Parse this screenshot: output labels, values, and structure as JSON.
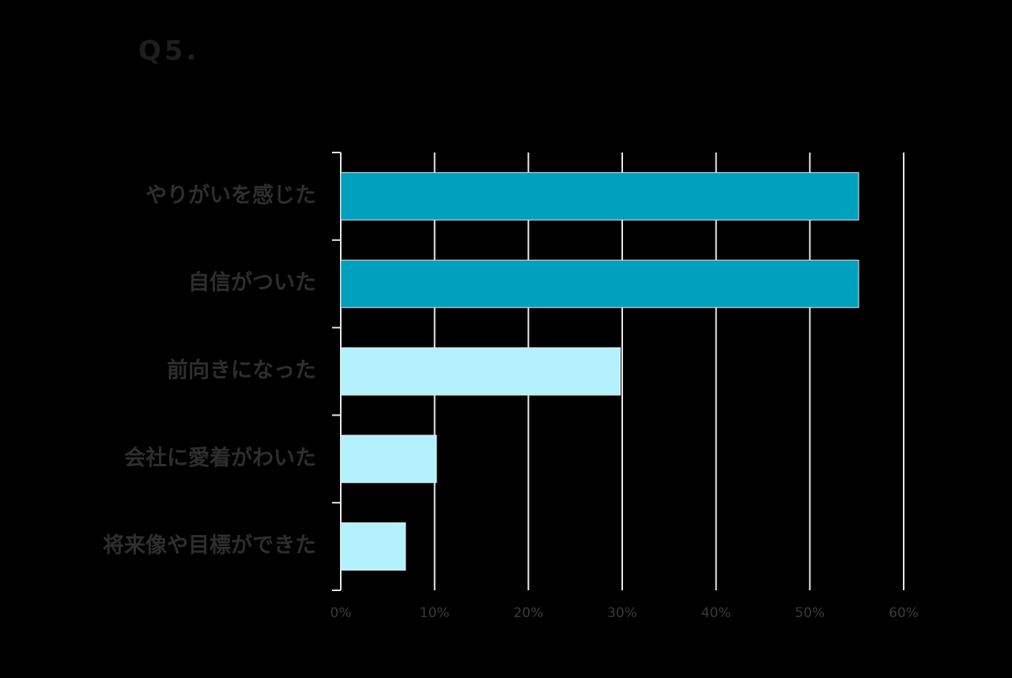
{
  "chart_data": {
    "type": "bar",
    "orientation": "horizontal",
    "title": "Q5.",
    "categories": [
      "やりがいを感じた",
      "自信がついた",
      "前向きになった",
      "会社に愛着がわいた",
      "将来像や目標ができた"
    ],
    "values": [
      55.2,
      55.2,
      29.8,
      10.2,
      6.9
    ],
    "colors": [
      "#00a0bf",
      "#00a0bf",
      "#b3f1fd",
      "#b3f1fd",
      "#b3f1fd"
    ],
    "xlim": [
      0,
      60
    ],
    "xticks": [
      {
        "value": 0,
        "label": "0%"
      },
      {
        "value": 10,
        "label": "10%"
      },
      {
        "value": 20,
        "label": "20%"
      },
      {
        "value": 30,
        "label": "30%"
      },
      {
        "value": 40,
        "label": "40%"
      },
      {
        "value": 50,
        "label": "50%"
      },
      {
        "value": 60,
        "label": "60%"
      }
    ],
    "grid": true
  }
}
